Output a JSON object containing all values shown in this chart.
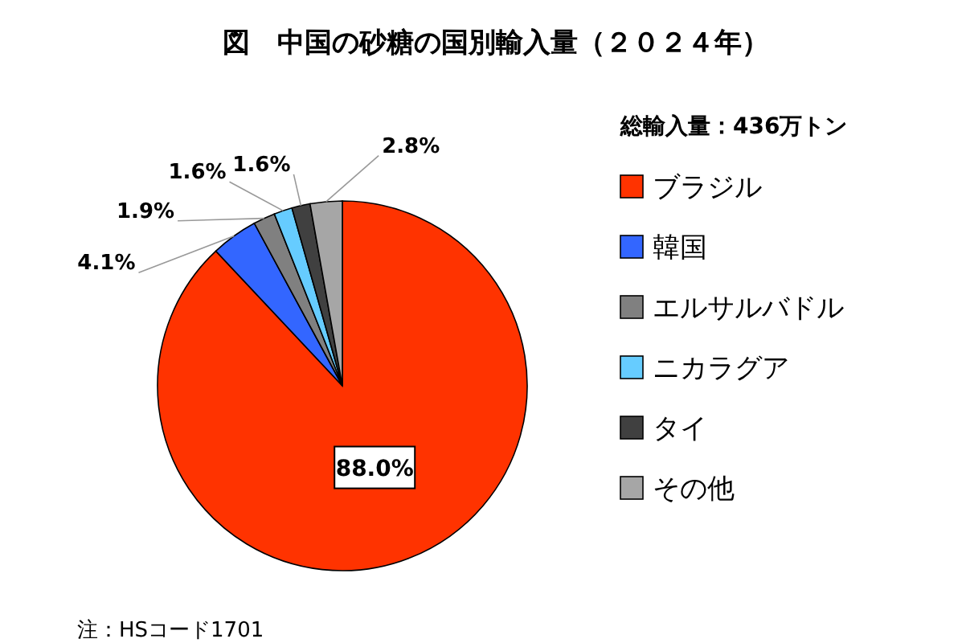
{
  "chart_data": {
    "type": "pie",
    "title": "図　中国の砂糖の国別輸入量（２０２４年）",
    "legend_title": "総輸入量：436万トン",
    "categories": [
      "ブラジル",
      "韓国",
      "エルサルバドル",
      "ニカラグア",
      "タイ",
      "その他"
    ],
    "values": [
      88.0,
      4.1,
      1.9,
      1.6,
      1.6,
      2.8
    ],
    "colors": [
      "#ff3300",
      "#3366ff",
      "#808080",
      "#66ccff",
      "#404040",
      "#a6a6a6"
    ],
    "value_labels": [
      "88.0%",
      "4.1%",
      "1.9%",
      "1.6%",
      "1.6%",
      "2.8%"
    ],
    "legend": "right",
    "annotations": [
      "注：HSコード1701"
    ]
  }
}
